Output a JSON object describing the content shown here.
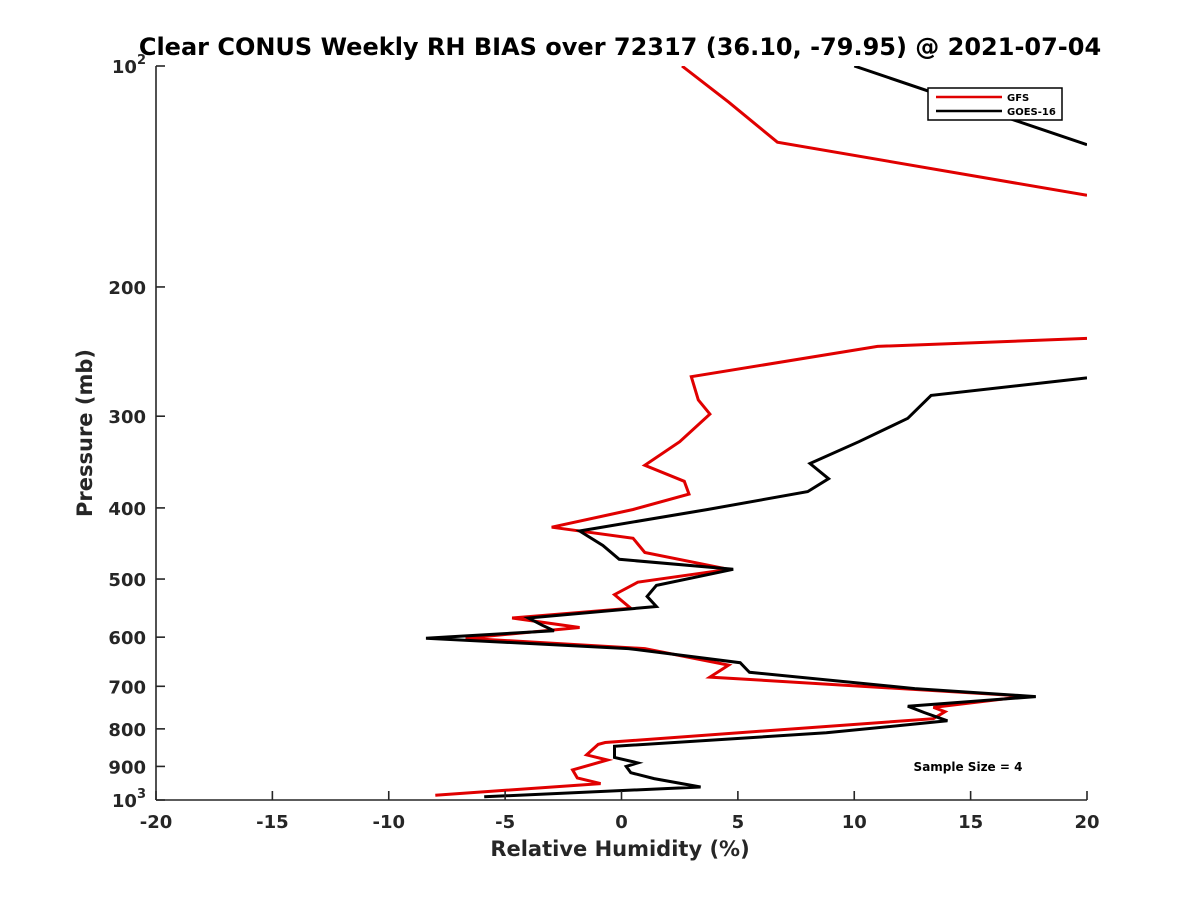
{
  "chart_data": {
    "type": "line",
    "title": "Clear CONUS Weekly RH BIAS over 72317 (36.10, -79.95) @ 2021-07-04",
    "xlabel": "Relative Humidity (%)",
    "ylabel": "Pressure (mb)",
    "xlim": [
      -20,
      20
    ],
    "ylim": [
      100,
      1000
    ],
    "y_scale": "log",
    "y_reversed": true,
    "grid": false,
    "legend_position": "top-right",
    "x_ticks": [
      "-20",
      "-15",
      "-10",
      "-5",
      "0",
      "5",
      "10",
      "15",
      "20"
    ],
    "y_ticks": [
      {
        "value": 100,
        "base": "10",
        "exp": "2"
      },
      {
        "value": 200,
        "base": "200",
        "exp": ""
      },
      {
        "value": 300,
        "base": "300",
        "exp": ""
      },
      {
        "value": 400,
        "base": "400",
        "exp": ""
      },
      {
        "value": 500,
        "base": "500",
        "exp": ""
      },
      {
        "value": 600,
        "base": "600",
        "exp": ""
      },
      {
        "value": 700,
        "base": "700",
        "exp": ""
      },
      {
        "value": 800,
        "base": "800",
        "exp": ""
      },
      {
        "value": 900,
        "base": "900",
        "exp": ""
      },
      {
        "value": 1000,
        "base": "10",
        "exp": "3"
      }
    ],
    "annotation": "Sample Size = 4",
    "series": [
      {
        "name": "GFS",
        "color": "#e00000",
        "points": [
          [
            2.6,
            100
          ],
          [
            4.6,
            112
          ],
          [
            6.7,
            127
          ],
          [
            20,
            150
          ],
          [
            null,
            null
          ],
          [
            20,
            235
          ],
          [
            11,
            241
          ],
          [
            3.0,
            265
          ],
          [
            3.3,
            285
          ],
          [
            3.8,
            298
          ],
          [
            2.5,
            325
          ],
          [
            1.0,
            350
          ],
          [
            2.7,
            368
          ],
          [
            2.9,
            383
          ],
          [
            0.5,
            402
          ],
          [
            -3.0,
            425
          ],
          [
            0.5,
            440
          ],
          [
            1.0,
            460
          ],
          [
            4.6,
            485
          ],
          [
            0.7,
            505
          ],
          [
            -0.3,
            525
          ],
          [
            0.4,
            548
          ],
          [
            -4.7,
            565
          ],
          [
            -1.8,
            582
          ],
          [
            -6.7,
            602
          ],
          [
            1.0,
            622
          ],
          [
            4.6,
            655
          ],
          [
            3.8,
            680
          ],
          [
            17.4,
            722
          ],
          [
            13.4,
            748
          ],
          [
            13.9,
            758
          ],
          [
            13.4,
            775
          ],
          [
            -0.7,
            835
          ],
          [
            -1.0,
            840
          ],
          [
            -1.5,
            868
          ],
          [
            -0.6,
            882
          ],
          [
            -2.1,
            910
          ],
          [
            -1.9,
            933
          ],
          [
            -0.9,
            950
          ],
          [
            -8.0,
            985
          ]
        ]
      },
      {
        "name": "GOES-16",
        "color": "#000000",
        "points": [
          [
            10,
            100
          ],
          [
            20,
            128
          ],
          [
            null,
            null
          ],
          [
            20,
            266
          ],
          [
            13.3,
            281
          ],
          [
            12.3,
            302
          ],
          [
            10.2,
            325
          ],
          [
            8.1,
            348
          ],
          [
            8.9,
            365
          ],
          [
            8.0,
            380
          ],
          [
            3.7,
            402
          ],
          [
            -1.8,
            430
          ],
          [
            -0.8,
            450
          ],
          [
            -0.1,
            470
          ],
          [
            4.8,
            485
          ],
          [
            1.5,
            510
          ],
          [
            1.1,
            528
          ],
          [
            1.5,
            545
          ],
          [
            -4.0,
            565
          ],
          [
            -3.4,
            578
          ],
          [
            -2.9,
            588
          ],
          [
            -8.4,
            602
          ],
          [
            0.3,
            622
          ],
          [
            5.1,
            650
          ],
          [
            5.4,
            665
          ],
          [
            5.5,
            670
          ],
          [
            12.6,
            705
          ],
          [
            17.8,
            723
          ],
          [
            12.3,
            745
          ],
          [
            13.0,
            760
          ],
          [
            14.0,
            780
          ],
          [
            8.8,
            810
          ],
          [
            -0.3,
            845
          ],
          [
            -0.3,
            875
          ],
          [
            0.7,
            890
          ],
          [
            0.2,
            900
          ],
          [
            0.4,
            918
          ],
          [
            1.4,
            935
          ],
          [
            3.4,
            960
          ],
          [
            -5.9,
            990
          ]
        ]
      }
    ]
  }
}
